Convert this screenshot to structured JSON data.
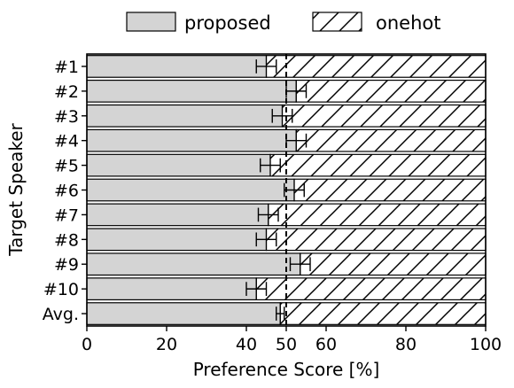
{
  "chart_data": {
    "type": "bar",
    "orientation": "horizontal",
    "stacked": true,
    "xlabel": "Preference Score [%]",
    "ylabel": "Target Speaker",
    "xlim": [
      0,
      100
    ],
    "xticks": [
      0,
      20,
      40,
      50,
      60,
      80,
      100
    ],
    "reference_line": 50,
    "categories": [
      "#1",
      "#2",
      "#3",
      "#4",
      "#5",
      "#6",
      "#7",
      "#8",
      "#9",
      "#10",
      "Avg."
    ],
    "series": [
      {
        "name": "proposed",
        "values": [
          45,
          52.5,
          49,
          52.5,
          46,
          52,
          45.5,
          45,
          53.5,
          42.5,
          48.5
        ],
        "error": [
          2.5,
          2.5,
          2.5,
          2.5,
          2.5,
          2.5,
          2.5,
          2.5,
          2.5,
          2.5,
          1
        ],
        "color": "#d4d4d4",
        "hatch": "none"
      },
      {
        "name": "onehot",
        "values": [
          55,
          47.5,
          51,
          47.5,
          54,
          48,
          54.5,
          55,
          46.5,
          57.5,
          51.5
        ],
        "color": "#ffffff",
        "hatch": "diagonal"
      }
    ],
    "legend_position": "top"
  }
}
